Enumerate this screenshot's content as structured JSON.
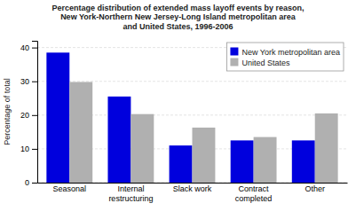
{
  "chart_data": {
    "type": "bar",
    "title": "Percentage distribution of extended mass layoff events by reason,\nNew York-Northern New Jersey-Long Island metropolitan area\nand United States, 1996-2006",
    "categories": [
      "Seasonal",
      "Internal\nrestructuring",
      "Slack work",
      "Contract\ncompleted",
      "Other"
    ],
    "series": [
      {
        "name": "New York metropolitan area",
        "color": "#0000dd",
        "values": [
          38.5,
          25.5,
          11.0,
          12.5,
          12.5
        ]
      },
      {
        "name": "United States",
        "color": "#b0b0b0",
        "values": [
          29.8,
          20.3,
          16.3,
          13.5,
          20.5
        ]
      }
    ],
    "ylabel": "Percentage of total",
    "ylim": [
      0,
      42
    ],
    "yticks": [
      0,
      10,
      20,
      30,
      40
    ],
    "grid": true,
    "legend": "upper right"
  }
}
